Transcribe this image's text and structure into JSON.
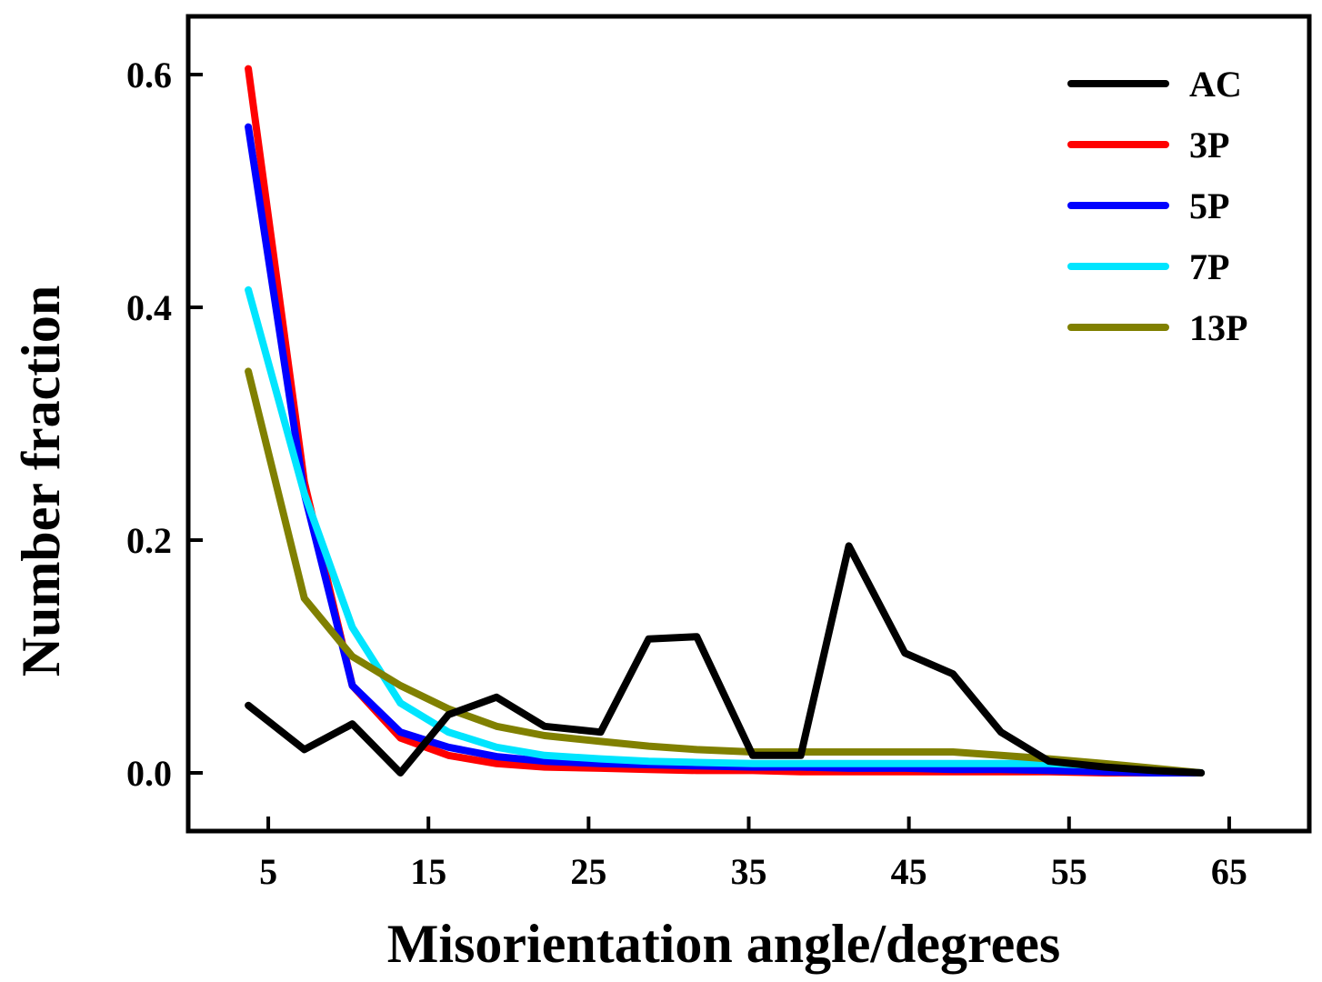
{
  "chart_data": {
    "type": "line",
    "title": "",
    "xlabel": "Misorientation angle/degrees",
    "ylabel": "Number fraction",
    "xlim": [
      0,
      70
    ],
    "ylim": [
      -0.05,
      0.65
    ],
    "xticks": [
      5,
      15,
      25,
      35,
      45,
      55,
      65
    ],
    "yticks": [
      0.0,
      0.2,
      0.4,
      0.6
    ],
    "xtick_labels": [
      "5",
      "15",
      "25",
      "35",
      "45",
      "55",
      "65"
    ],
    "ytick_labels": [
      "0.0",
      "0.2",
      "0.4",
      "0.6"
    ],
    "grid": false,
    "legend_position": "top-right",
    "x": [
      3.75,
      7.25,
      10.25,
      13.25,
      16.25,
      19.25,
      22.25,
      25.75,
      28.75,
      31.75,
      35.25,
      38.25,
      41.25,
      44.75,
      47.75,
      50.75,
      53.75,
      57.25,
      60.25,
      63.25
    ],
    "series": [
      {
        "name": "AC",
        "color": "#000000",
        "values": [
          0.058,
          0.02,
          0.042,
          0.0,
          0.05,
          0.065,
          0.04,
          0.035,
          0.115,
          0.117,
          0.015,
          0.015,
          0.195,
          0.103,
          0.085,
          0.035,
          0.01,
          0.005,
          0.002,
          0.0
        ]
      },
      {
        "name": "3P",
        "color": "#ff0000",
        "values": [
          0.605,
          0.25,
          0.075,
          0.03,
          0.015,
          0.008,
          0.005,
          0.004,
          0.003,
          0.002,
          0.002,
          0.001,
          0.001,
          0.001,
          0.001,
          0.001,
          0.001,
          0.0,
          0.0,
          0.0
        ]
      },
      {
        "name": "5P",
        "color": "#0000ff",
        "values": [
          0.555,
          0.24,
          0.075,
          0.035,
          0.022,
          0.014,
          0.01,
          0.008,
          0.007,
          0.006,
          0.005,
          0.005,
          0.004,
          0.004,
          0.003,
          0.003,
          0.002,
          0.001,
          0.0,
          0.0
        ]
      },
      {
        "name": "7P",
        "color": "#00e5ff",
        "values": [
          0.415,
          0.24,
          0.125,
          0.06,
          0.035,
          0.022,
          0.015,
          0.012,
          0.01,
          0.009,
          0.008,
          0.008,
          0.008,
          0.008,
          0.008,
          0.008,
          0.008,
          0.006,
          0.003,
          0.0
        ]
      },
      {
        "name": "13P",
        "color": "#808000",
        "values": [
          0.345,
          0.15,
          0.1,
          0.075,
          0.055,
          0.04,
          0.032,
          0.027,
          0.023,
          0.02,
          0.018,
          0.018,
          0.018,
          0.018,
          0.018,
          0.015,
          0.012,
          0.008,
          0.004,
          0.0
        ]
      }
    ]
  }
}
